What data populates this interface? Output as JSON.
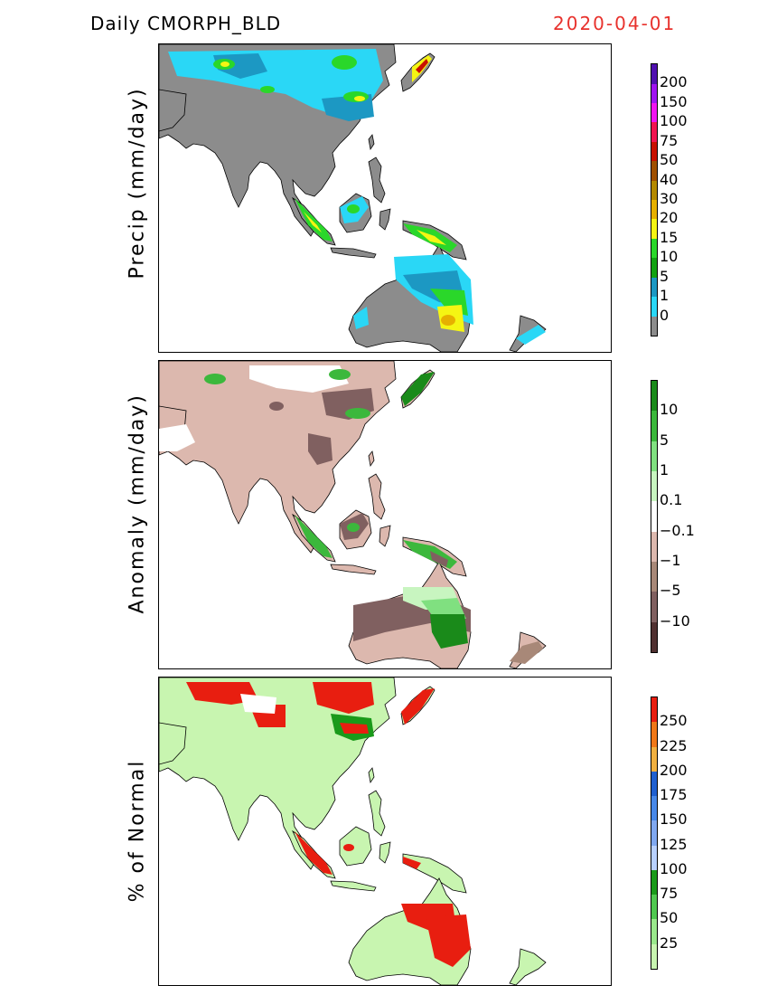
{
  "header": {
    "title": "Daily  CMORPH_BLD",
    "date": "2020-04-01"
  },
  "panels": [
    {
      "ylabel": "Precip  (mm/day)",
      "colorbar": {
        "colors": [
          "#8c8c8c",
          "#2ad7f6",
          "#1c98c3",
          "#12a212",
          "#2ad72a",
          "#f5f513",
          "#e6b000",
          "#b48900",
          "#a05000",
          "#c81000",
          "#f01450",
          "#f013f0",
          "#a013f0",
          "#5010b0"
        ],
        "labels": [
          "0",
          "1",
          "5",
          "10",
          "15",
          "20",
          "30",
          "40",
          "50",
          "75",
          "100",
          "150",
          "200"
        ]
      }
    },
    {
      "ylabel": "Anomaly  (mm/day)",
      "colorbar": {
        "colors": [
          "#503030",
          "#806060",
          "#a88878",
          "#dcb8ae",
          "#ffffff",
          "#c8f5c0",
          "#80e080",
          "#3cb83c",
          "#1a8a1a"
        ],
        "labels": [
          "−10",
          "−5",
          "−1",
          "−0.1",
          "0.1",
          "1",
          "5",
          "10"
        ]
      }
    },
    {
      "ylabel": "% of  Normal",
      "colorbar": {
        "colors": [
          "#c8f5b0",
          "#9ae88c",
          "#50c850",
          "#1a9a1a",
          "#b8d0ff",
          "#80a8f0",
          "#4888e8",
          "#2060d0",
          "#f0b040",
          "#f07818",
          "#e81e10"
        ],
        "labels": [
          "25",
          "50",
          "75",
          "100",
          "125",
          "150",
          "175",
          "200",
          "225",
          "250"
        ]
      }
    }
  ]
}
